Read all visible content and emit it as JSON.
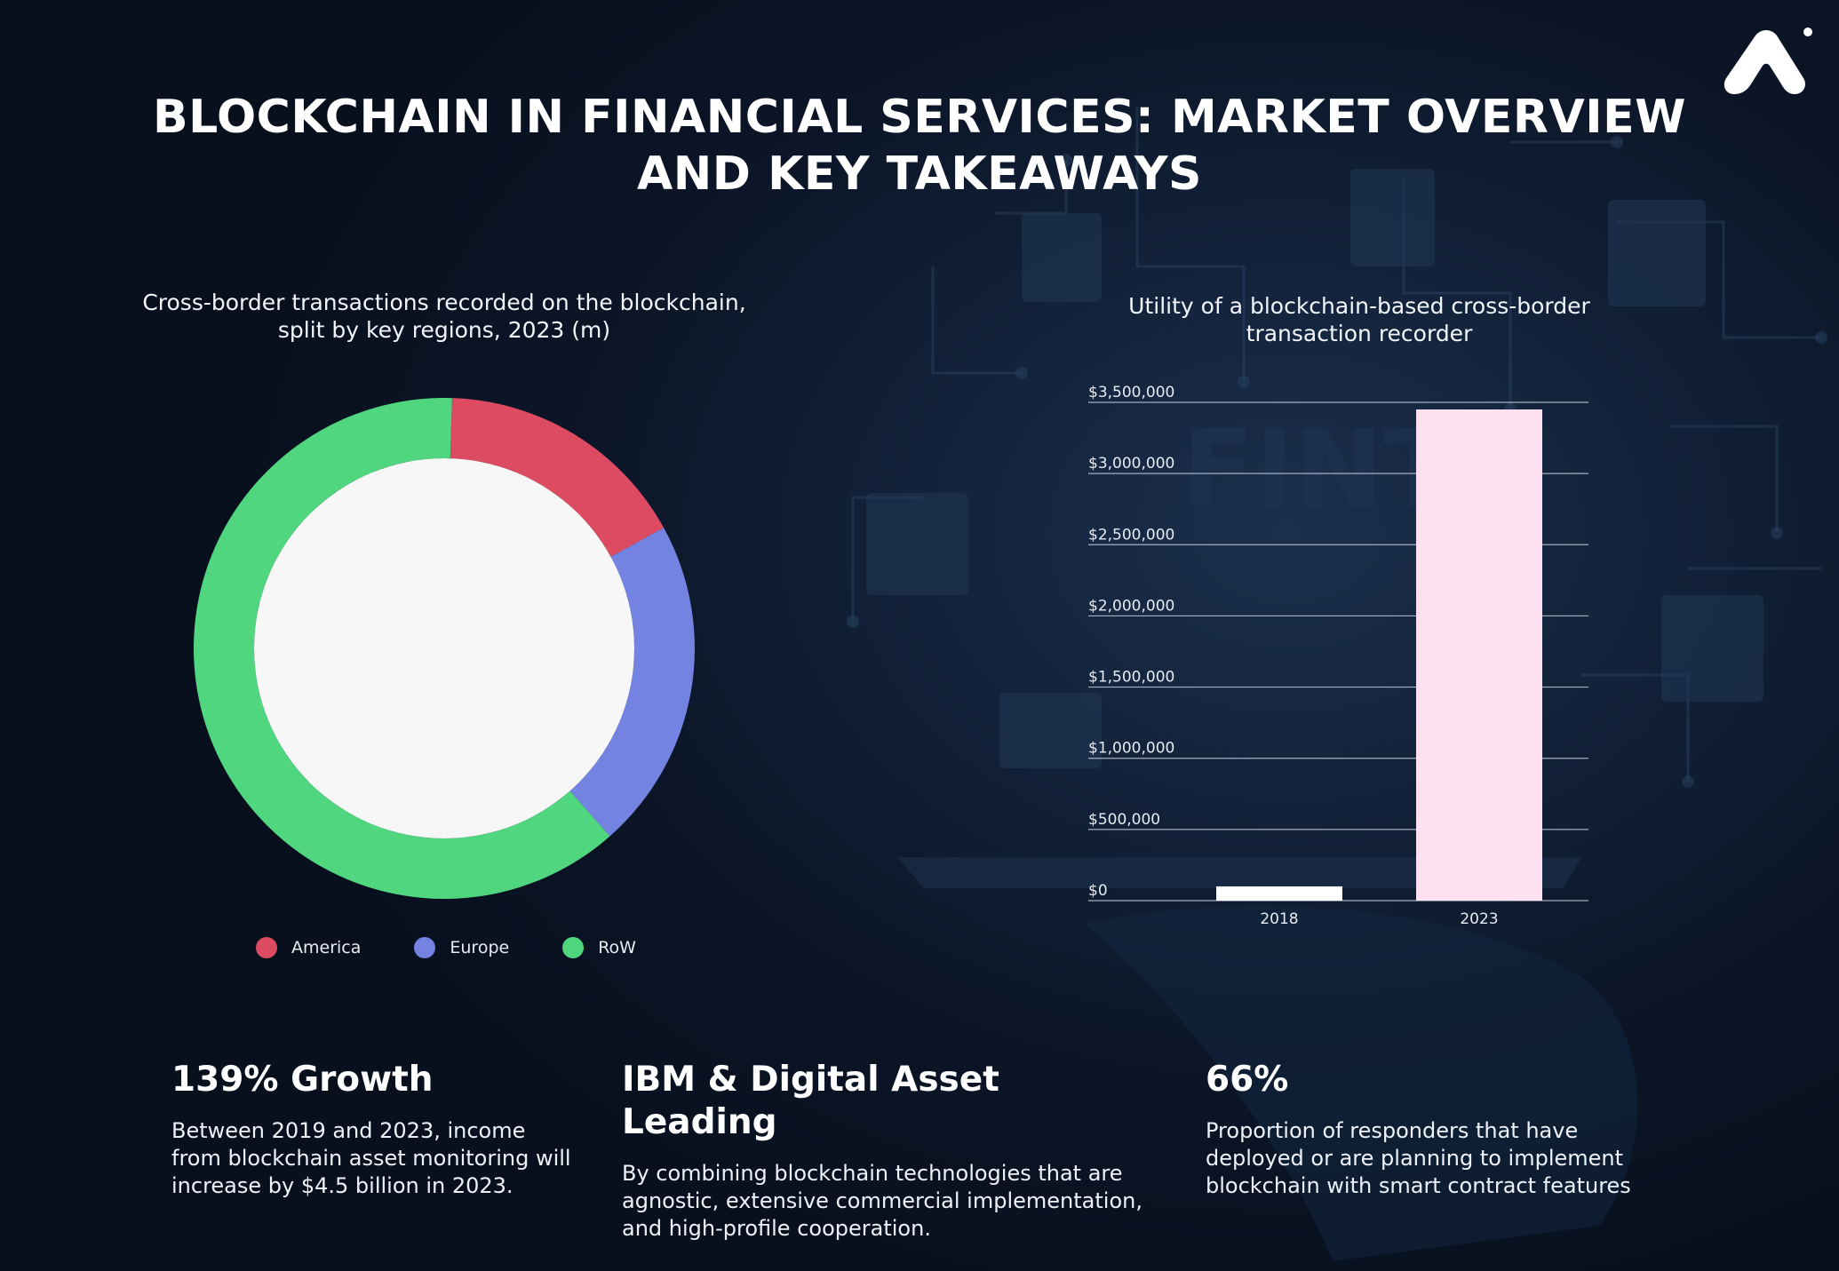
{
  "header": {
    "title": "BLOCKCHAIN IN FINANCIAL SERVICES: MARKET OVERVIEW AND KEY TAKEAWAYS",
    "logo_icon": "a-arrow-logo-icon"
  },
  "colors": {
    "america": "#dd4b63",
    "europe": "#7482e2",
    "row": "#51d680",
    "bar_2018": "#ffffff",
    "bar_2023": "#ffe0f1",
    "donut_center": "#f7f7f8"
  },
  "chart_data": [
    {
      "type": "pie",
      "variant": "donut",
      "title": "Cross-border transactions recorded on the blockchain, split by key regions, 2023 (m)",
      "slices": [
        {
          "label": "America",
          "value": 16.5,
          "color": "#dd4b63"
        },
        {
          "label": "Europe",
          "value": 21.5,
          "color": "#7482e2"
        },
        {
          "label": "RoW",
          "value": 62.0,
          "color": "#51d680"
        }
      ],
      "legend": "bottom"
    },
    {
      "type": "bar",
      "title": "Utility of a blockchain-based cross-border transaction recorder",
      "categories": [
        "2018",
        "2023"
      ],
      "values": [
        100000,
        3450000
      ],
      "colors": [
        "#ffffff",
        "#ffe0f1"
      ],
      "ylim": [
        0,
        3500000
      ],
      "yticks": [
        "$0",
        "$500,000",
        "$1,000,000",
        "$1,500,000",
        "$2,000,000",
        "$2,500,000",
        "$3,000,000",
        "$3,500,000"
      ],
      "grid": true
    }
  ],
  "takeaways": [
    {
      "heading": "139% Growth",
      "text": "Between 2019 and 2023, income from blockchain asset monitoring will increase by $4.5 billion in 2023."
    },
    {
      "heading": "IBM & Digital Asset Leading",
      "text": "By combining blockchain technologies that are agnostic, extensive commercial implementation, and high-profile cooperation."
    },
    {
      "heading": "66%",
      "text": "Proportion of responders that have deployed or are planning to implement blockchain with smart contract features"
    }
  ]
}
